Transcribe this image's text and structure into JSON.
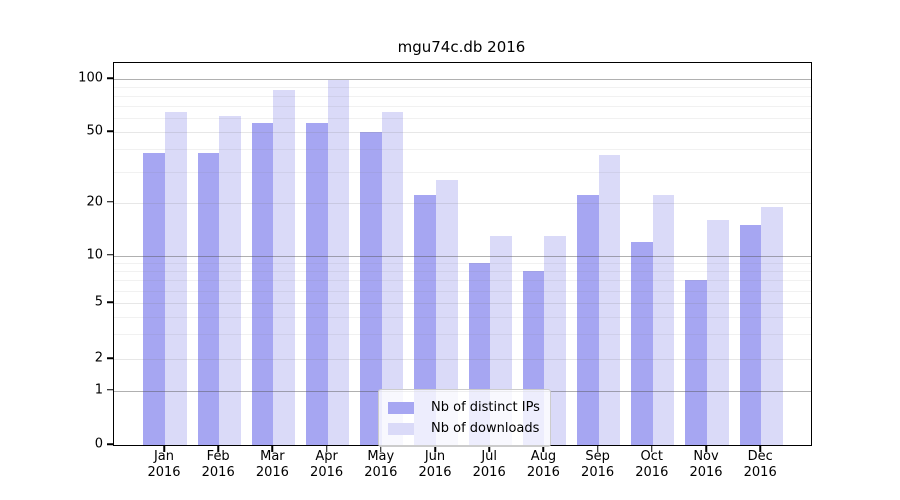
{
  "chart_data": {
    "type": "bar",
    "title": "mgu74c.db 2016",
    "categories": [
      "Jan",
      "Feb",
      "Mar",
      "Apr",
      "May",
      "Jun",
      "Jul",
      "Aug",
      "Sep",
      "Oct",
      "Nov",
      "Dec"
    ],
    "category_year": "2016",
    "series": [
      {
        "name": "Nb of distinct IPs",
        "color": "#a6a6f2",
        "values": [
          38,
          38,
          56,
          56,
          50,
          22,
          9,
          8,
          22,
          12,
          7,
          15
        ]
      },
      {
        "name": "Nb of downloads",
        "color": "#dadaf8",
        "values": [
          65,
          62,
          87,
          99,
          65,
          27,
          13,
          13,
          37,
          22,
          16,
          19
        ]
      }
    ],
    "y_axis": {
      "scale": "log-like",
      "major_ticks": [
        100,
        50,
        20,
        10,
        5,
        2,
        1,
        0
      ],
      "minor_ticks": [
        3,
        4,
        6,
        7,
        8,
        9,
        30,
        40,
        60,
        70,
        80,
        90
      ],
      "range_bottom": 0,
      "range_top_approx": 120
    },
    "grid": true,
    "legend_position": "bottom-center"
  }
}
